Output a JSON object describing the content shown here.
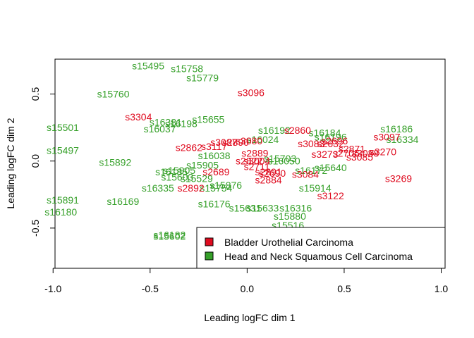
{
  "chart_data": {
    "type": "scatter",
    "title": "",
    "xlabel": "Leading logFC dim 1",
    "ylabel": "Leading logFC dim 2",
    "xlim": [
      -0.99,
      1.02
    ],
    "ylim": [
      -0.8,
      0.76
    ],
    "x_ticks": [
      -1.0,
      -0.5,
      0.0,
      0.5,
      1.0
    ],
    "x_tick_labels": [
      "-1.0",
      "-0.5",
      "0.0",
      "0.5",
      "1.0"
    ],
    "y_ticks": [
      -0.5,
      0.0,
      0.5
    ],
    "y_tick_labels": [
      "-0.5",
      "0.0",
      "0.5"
    ],
    "grid": false,
    "legend": {
      "position": "bottom-right",
      "entries": [
        "Bladder Urothelial Carcinoma",
        "Head and Neck Squamous Cell Carcinoma"
      ]
    },
    "series": [
      {
        "name": "Bladder Urothelial Carcinoma",
        "color": "#df0b1f",
        "points": [
          {
            "label": "s3096",
            "x": 0.02,
            "y": 0.51
          },
          {
            "label": "s3304",
            "x": -0.56,
            "y": 0.33
          },
          {
            "label": "s2860",
            "x": 0.26,
            "y": 0.23
          },
          {
            "label": "s2696",
            "x": 0.45,
            "y": 0.15
          },
          {
            "label": "s3097",
            "x": 0.72,
            "y": 0.18
          },
          {
            "label": "s3083",
            "x": 0.33,
            "y": 0.13
          },
          {
            "label": "s2632",
            "x": 0.43,
            "y": 0.13
          },
          {
            "label": "s2862",
            "x": -0.3,
            "y": 0.1
          },
          {
            "label": "s3087",
            "x": -0.12,
            "y": 0.14
          },
          {
            "label": "s2890",
            "x": -0.06,
            "y": 0.14
          },
          {
            "label": "s3080",
            "x": 0.01,
            "y": 0.15
          },
          {
            "label": "s3117",
            "x": -0.17,
            "y": 0.11
          },
          {
            "label": "s2871",
            "x": 0.54,
            "y": 0.09
          },
          {
            "label": "s3270",
            "x": 0.7,
            "y": 0.07
          },
          {
            "label": "s3273",
            "x": 0.4,
            "y": 0.05
          },
          {
            "label": "s2705",
            "x": 0.51,
            "y": 0.06
          },
          {
            "label": "s2889",
            "x": 0.04,
            "y": 0.06
          },
          {
            "label": "s3085",
            "x": 0.58,
            "y": 0.03
          },
          {
            "label": "s3088",
            "x": 0.61,
            "y": 0.06
          },
          {
            "label": "s2822",
            "x": 0.01,
            "y": 0.0
          },
          {
            "label": "s3004",
            "x": 0.05,
            "y": 0.0
          },
          {
            "label": "s2711",
            "x": 0.05,
            "y": -0.04
          },
          {
            "label": "s2689",
            "x": -0.16,
            "y": -0.08
          },
          {
            "label": "s2690",
            "x": 0.13,
            "y": -0.09
          },
          {
            "label": "s2891",
            "x": 0.11,
            "y": -0.08
          },
          {
            "label": "s2884",
            "x": 0.11,
            "y": -0.14
          },
          {
            "label": "s3084",
            "x": 0.3,
            "y": -0.1
          },
          {
            "label": "s3269",
            "x": 0.78,
            "y": -0.13
          },
          {
            "label": "s2892",
            "x": -0.29,
            "y": -0.2
          },
          {
            "label": "s3122",
            "x": 0.43,
            "y": -0.26
          }
        ]
      },
      {
        "name": "Head and Neck Squamous Cell Carcinoma",
        "color": "#36a02a",
        "points": [
          {
            "label": "s15495",
            "x": -0.51,
            "y": 0.71
          },
          {
            "label": "s15758",
            "x": -0.31,
            "y": 0.69
          },
          {
            "label": "s15779",
            "x": -0.23,
            "y": 0.62
          },
          {
            "label": "s15760",
            "x": -0.69,
            "y": 0.5
          },
          {
            "label": "s16381",
            "x": -0.42,
            "y": 0.29
          },
          {
            "label": "s16198",
            "x": -0.34,
            "y": 0.28
          },
          {
            "label": "s15655",
            "x": -0.2,
            "y": 0.31
          },
          {
            "label": "s16037",
            "x": -0.45,
            "y": 0.24
          },
          {
            "label": "s15501",
            "x": -0.95,
            "y": 0.25
          },
          {
            "label": "s16192",
            "x": 0.14,
            "y": 0.23
          },
          {
            "label": "s16184",
            "x": 0.4,
            "y": 0.21
          },
          {
            "label": "s16186",
            "x": 0.77,
            "y": 0.24
          },
          {
            "label": "s16334",
            "x": 0.8,
            "y": 0.16
          },
          {
            "label": "s16196",
            "x": 0.43,
            "y": 0.18
          },
          {
            "label": "s16024",
            "x": 0.08,
            "y": 0.16
          },
          {
            "label": "s15497",
            "x": -0.95,
            "y": 0.08
          },
          {
            "label": "s16038",
            "x": -0.17,
            "y": 0.04
          },
          {
            "label": "s15892",
            "x": -0.68,
            "y": -0.01
          },
          {
            "label": "s15703",
            "x": 0.17,
            "y": 0.02
          },
          {
            "label": "s16050",
            "x": 0.19,
            "y": 0.0
          },
          {
            "label": "s15905",
            "x": -0.23,
            "y": -0.03
          },
          {
            "label": "s15640",
            "x": 0.43,
            "y": -0.05
          },
          {
            "label": "s16185",
            "x": -0.39,
            "y": -0.08
          },
          {
            "label": "s15905b",
            "x": -0.35,
            "y": -0.07
          },
          {
            "label": "s16172",
            "x": 0.33,
            "y": -0.07
          },
          {
            "label": "s15603",
            "x": -0.36,
            "y": -0.12
          },
          {
            "label": "s15529",
            "x": -0.26,
            "y": -0.13
          },
          {
            "label": "s16335",
            "x": -0.46,
            "y": -0.2
          },
          {
            "label": "s15876",
            "x": -0.11,
            "y": -0.18
          },
          {
            "label": "s15754",
            "x": -0.16,
            "y": -0.2
          },
          {
            "label": "s15914",
            "x": 0.35,
            "y": -0.2
          },
          {
            "label": "s15891",
            "x": -0.95,
            "y": -0.29
          },
          {
            "label": "s16169",
            "x": -0.64,
            "y": -0.3
          },
          {
            "label": "s16176",
            "x": -0.17,
            "y": -0.32
          },
          {
            "label": "s15631",
            "x": -0.01,
            "y": -0.35
          },
          {
            "label": "s15633",
            "x": 0.08,
            "y": -0.35
          },
          {
            "label": "s16316",
            "x": 0.25,
            "y": -0.35
          },
          {
            "label": "s16180",
            "x": -0.96,
            "y": -0.38
          },
          {
            "label": "s15880",
            "x": 0.22,
            "y": -0.41
          },
          {
            "label": "s15516",
            "x": 0.21,
            "y": -0.48
          },
          {
            "label": "s16182",
            "x": -0.4,
            "y": -0.55
          },
          {
            "label": "s15602",
            "x": -0.4,
            "y": -0.56
          }
        ]
      }
    ]
  }
}
